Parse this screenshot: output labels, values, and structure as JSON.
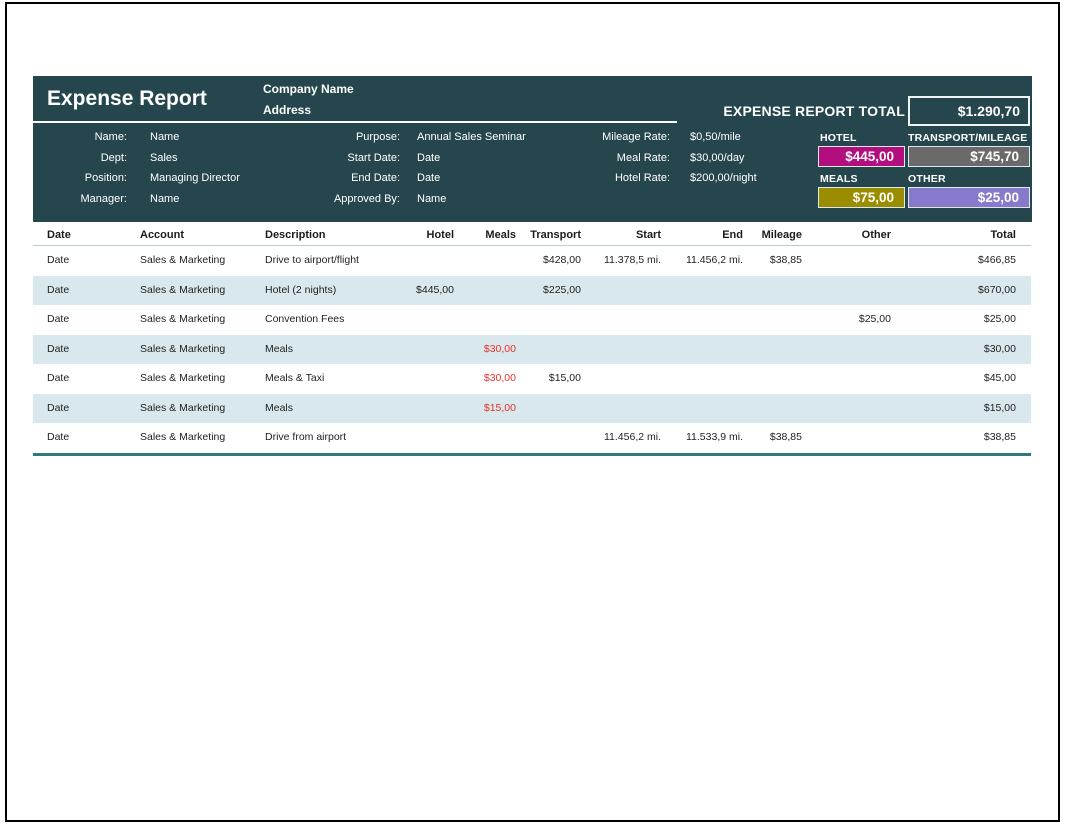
{
  "header": {
    "title": "Expense Report",
    "company_name": "Company Name",
    "address": "Address",
    "report_total_label": "EXPENSE REPORT TOTAL",
    "report_total_value": "$1.290,70",
    "info": {
      "left": [
        {
          "label": "Name:",
          "value": "Name"
        },
        {
          "label": "Dept:",
          "value": "Sales"
        },
        {
          "label": "Position:",
          "value": "Managing Director"
        },
        {
          "label": "Manager:",
          "value": "Name"
        }
      ],
      "middle": [
        {
          "label": "Purpose:",
          "value": "Annual Sales Seminar"
        },
        {
          "label": "Start Date:",
          "value": "Date"
        },
        {
          "label": "End Date:",
          "value": "Date"
        },
        {
          "label": "Approved By:",
          "value": "Name"
        }
      ],
      "rates": [
        {
          "label": "Mileage Rate:",
          "value": "$0,50/mile"
        },
        {
          "label": "Meal Rate:",
          "value": "$30,00/day"
        },
        {
          "label": "Hotel Rate:",
          "value": "$200,00/night"
        }
      ]
    },
    "summary": [
      {
        "label": "HOTEL",
        "value": "$445,00",
        "color": "#b20e7d"
      },
      {
        "label": "TRANSPORT/MILEAGE",
        "value": "$745,70",
        "color": "#6b6a6a"
      },
      {
        "label": "MEALS",
        "value": "$75,00",
        "color": "#9a8d00"
      },
      {
        "label": "OTHER",
        "value": "$25,00",
        "color": "#8779cb"
      }
    ]
  },
  "table": {
    "columns": [
      "Date",
      "Account",
      "Description",
      "Hotel",
      "Meals",
      "Transport",
      "Start",
      "End",
      "Mileage",
      "Other",
      "Total"
    ],
    "column_keys": [
      "date",
      "account",
      "description",
      "hotel",
      "meals",
      "transport",
      "start",
      "end",
      "mileage",
      "other",
      "total"
    ],
    "rows": [
      [
        "Date",
        "Sales & Marketing",
        "Drive to airport/flight",
        "",
        "",
        "$428,00",
        "11.378,5  mi.",
        "11.456,2  mi.",
        "$38,85",
        "",
        "$466,85"
      ],
      [
        "Date",
        "Sales & Marketing",
        "Hotel (2 nights)",
        "$445,00",
        "",
        "$225,00",
        "",
        "",
        "",
        "",
        "$670,00"
      ],
      [
        "Date",
        "Sales & Marketing",
        "Convention Fees",
        "",
        "",
        "",
        "",
        "",
        "",
        "$25,00",
        "$25,00"
      ],
      [
        "Date",
        "Sales & Marketing",
        "Meals",
        "",
        "$30,00",
        "",
        "",
        "",
        "",
        "",
        "$30,00"
      ],
      [
        "Date",
        "Sales & Marketing",
        "Meals & Taxi",
        "",
        "$30,00",
        "$15,00",
        "",
        "",
        "",
        "",
        "$45,00"
      ],
      [
        "Date",
        "Sales & Marketing",
        "Meals",
        "",
        "$15,00",
        "",
        "",
        "",
        "",
        "",
        "$15,00"
      ],
      [
        "Date",
        "Sales & Marketing",
        "Drive from airport",
        "",
        "",
        "",
        "11.456,2  mi.",
        "11.533,9  mi.",
        "$38,85",
        "",
        "$38,85"
      ]
    ]
  },
  "colors": {
    "header_background": "#26464e",
    "row_alternate": "#d9e8ec",
    "table_bottom_border": "#2f7a82",
    "negative_red": "#e8312b"
  }
}
